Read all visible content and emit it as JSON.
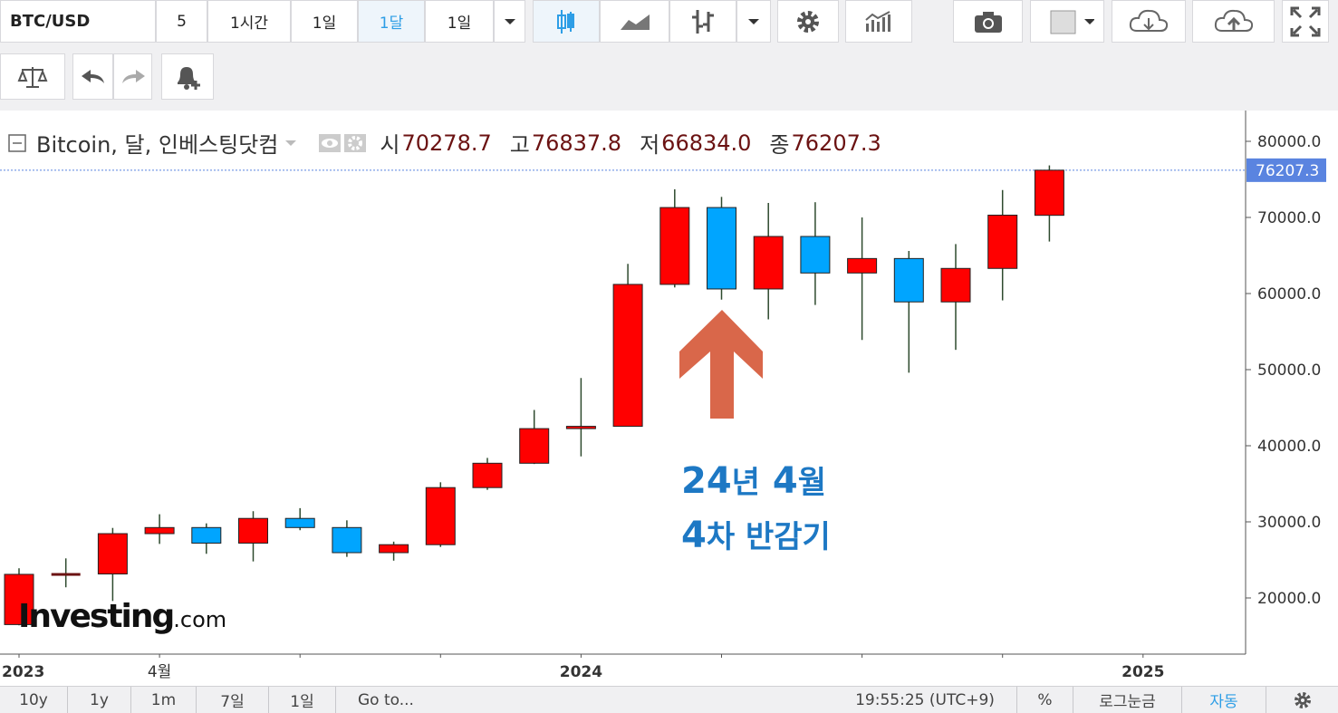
{
  "toolbar": {
    "symbol": "BTC/USD",
    "intervals": [
      "5",
      "1시간",
      "1일",
      "1달",
      "1일"
    ],
    "active_interval": "1달"
  },
  "legend": {
    "title": "Bitcoin, 달, 인베스팅닷컴",
    "open_label": "시",
    "open": "70278.7",
    "high_label": "고",
    "high": "76837.8",
    "low_label": "저",
    "low": "66834.0",
    "close_label": "종",
    "close": "76207.3"
  },
  "annotation": {
    "line1_num1": "24",
    "line1_unit1": "년",
    "line1_num2": "4",
    "line1_unit2": "월",
    "line2_num": "4",
    "line2_text": "차 반감기"
  },
  "logo": {
    "main": "Investing",
    "suffix": ".com"
  },
  "bottom_bar": {
    "ranges": [
      "10y",
      "1y",
      "1m",
      "7일",
      "1일",
      "Go to..."
    ],
    "time": "19:55:25 (UTC+9)",
    "percent": "%",
    "log": "로그눈금",
    "auto": "자동"
  },
  "colors": {
    "up": "#ff0000",
    "down": "#00a5ff",
    "wick": "#2e4a2e",
    "annotation": "#1d78c4",
    "arrow": "#d9674a",
    "price_tag": "#5a84e0"
  },
  "chart_data": {
    "type": "candlestick",
    "title": "Bitcoin, 달, 인베스팅닷컴",
    "ylim": [
      12000,
      83000
    ],
    "yticks": [
      20000,
      30000,
      40000,
      50000,
      60000,
      70000,
      80000
    ],
    "ytick_labels": [
      "20000.0",
      "30000.0",
      "40000.0",
      "50000.0",
      "60000.0",
      "70000.0",
      "80000.0"
    ],
    "last_price": 76207.3,
    "last_price_label": "76207.3",
    "x_labels": [
      {
        "label": "2023",
        "index": 0,
        "bold": true
      },
      {
        "label": "4월",
        "index": 3,
        "bold": false
      },
      {
        "label": "2024",
        "index": 12,
        "bold": true
      },
      {
        "label": "2025",
        "index": 24,
        "bold": true
      }
    ],
    "candles": [
      {
        "date": "2023-01",
        "open": 16500,
        "high": 23900,
        "low": 16400,
        "close": 23100
      },
      {
        "date": "2023-02",
        "open": 23100,
        "high": 25200,
        "low": 21400,
        "close": 23150
      },
      {
        "date": "2023-03",
        "open": 23150,
        "high": 29200,
        "low": 19600,
        "close": 28450
      },
      {
        "date": "2023-04",
        "open": 28450,
        "high": 31000,
        "low": 27100,
        "close": 29250
      },
      {
        "date": "2023-05",
        "open": 29250,
        "high": 29800,
        "low": 25800,
        "close": 27200
      },
      {
        "date": "2023-06",
        "open": 27200,
        "high": 31400,
        "low": 24800,
        "close": 30450
      },
      {
        "date": "2023-07",
        "open": 30450,
        "high": 31800,
        "low": 28900,
        "close": 29250
      },
      {
        "date": "2023-08",
        "open": 29250,
        "high": 30200,
        "low": 25400,
        "close": 25950
      },
      {
        "date": "2023-09",
        "open": 25950,
        "high": 27400,
        "low": 24900,
        "close": 27000
      },
      {
        "date": "2023-10",
        "open": 27000,
        "high": 35200,
        "low": 26700,
        "close": 34500
      },
      {
        "date": "2023-11",
        "open": 34500,
        "high": 38400,
        "low": 34200,
        "close": 37700
      },
      {
        "date": "2023-12",
        "open": 37700,
        "high": 44700,
        "low": 37600,
        "close": 42250
      },
      {
        "date": "2024-01",
        "open": 42250,
        "high": 48900,
        "low": 38600,
        "close": 42550
      },
      {
        "date": "2024-02",
        "open": 42550,
        "high": 63900,
        "low": 42500,
        "close": 61200
      },
      {
        "date": "2024-03",
        "open": 61200,
        "high": 73700,
        "low": 60800,
        "close": 71300
      },
      {
        "date": "2024-04",
        "open": 71300,
        "high": 72700,
        "low": 59200,
        "close": 60600
      },
      {
        "date": "2024-05",
        "open": 60600,
        "high": 71900,
        "low": 56600,
        "close": 67500
      },
      {
        "date": "2024-06",
        "open": 67500,
        "high": 72000,
        "low": 58500,
        "close": 62700
      },
      {
        "date": "2024-07",
        "open": 62700,
        "high": 70000,
        "low": 53900,
        "close": 64600
      },
      {
        "date": "2024-08",
        "open": 64600,
        "high": 65600,
        "low": 49600,
        "close": 58900
      },
      {
        "date": "2024-09",
        "open": 58900,
        "high": 66500,
        "low": 52600,
        "close": 63300
      },
      {
        "date": "2024-10",
        "open": 63300,
        "high": 73600,
        "low": 59100,
        "close": 70300
      },
      {
        "date": "2024-11",
        "open": 70278.7,
        "high": 76837.8,
        "low": 66834.0,
        "close": 76207.3
      }
    ]
  }
}
